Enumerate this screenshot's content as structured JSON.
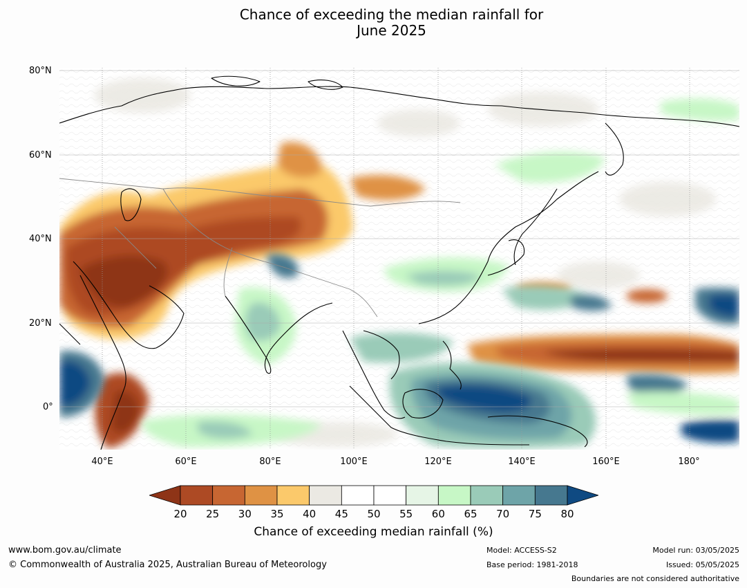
{
  "title_line1": "Chance of exceeding the median rainfall for",
  "title_line2": "June 2025",
  "lat_labels": [
    "80°N",
    "60°N",
    "40°N",
    "20°N",
    "0°"
  ],
  "lon_labels": [
    "40°E",
    "60°E",
    "80°E",
    "100°E",
    "120°E",
    "140°E",
    "160°E",
    "180°"
  ],
  "colorbar": {
    "ticks": [
      "20",
      "25",
      "30",
      "35",
      "40",
      "45",
      "50",
      "55",
      "60",
      "65",
      "70",
      "75",
      "80"
    ],
    "colors": [
      "#8e3417",
      "#ad4a24",
      "#c76632",
      "#df9244",
      "#fbc96b",
      "#ebe9e3",
      "#ffffff",
      "#ffffff",
      "#e6f5e6",
      "#c7f7c6",
      "#9acbb8",
      "#6ea4a8",
      "#46788f",
      "#0f4a82"
    ],
    "label": "Chance of exceeding median rainfall (%)"
  },
  "footer": {
    "website": "www.bom.gov.au/climate",
    "copyright": "© Commonwealth of Australia 2025, Australian Bureau of Meteorology",
    "model": "Model: ACCESS-S2",
    "base_period": "Base period: 1981-2018",
    "model_run": "Model run: 03/05/2025",
    "issued": "Issued: 05/05/2025",
    "disclaimer": "Boundaries are not considered authoritative"
  }
}
